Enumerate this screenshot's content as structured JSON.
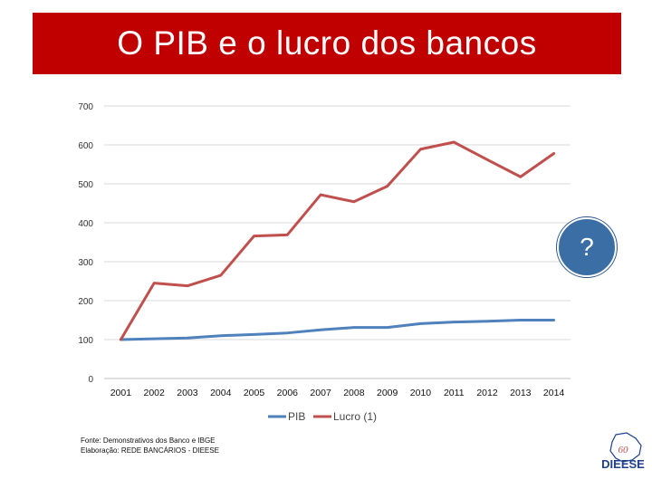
{
  "slide": {
    "title": "O PIB e o lucro dos bancos",
    "source_line1": "Fonte: Demonstrativos dos Banco e IBGE",
    "source_line2": "Elaboração: REDE BANCÁRIOS - DIEESE",
    "badge_symbol": "?",
    "logo_text": "DIEESE",
    "title_bg_color": "#c00000"
  },
  "chart_data": {
    "type": "line",
    "title": "",
    "xlabel": "",
    "ylabel": "",
    "ylim": [
      0,
      700
    ],
    "yticks": [
      0,
      100,
      200,
      300,
      400,
      500,
      600,
      700
    ],
    "grid": true,
    "legend_position": "bottom",
    "categories": [
      "2001",
      "2002",
      "2003",
      "2004",
      "2005",
      "2006",
      "2007",
      "2008",
      "2009",
      "2010",
      "2011",
      "2012",
      "2013",
      "2014"
    ],
    "series": [
      {
        "name": "PIB",
        "color": "#4f81bd",
        "values": [
          100,
          102,
          104,
          110,
          113,
          117,
          125,
          131,
          131,
          141,
          145,
          147,
          150,
          150
        ]
      },
      {
        "name": "Lucro (1)",
        "color": "#c0504d",
        "values": [
          100,
          245,
          238,
          265,
          366,
          369,
          472,
          454,
          494,
          589,
          607,
          562,
          518,
          578
        ]
      }
    ]
  }
}
